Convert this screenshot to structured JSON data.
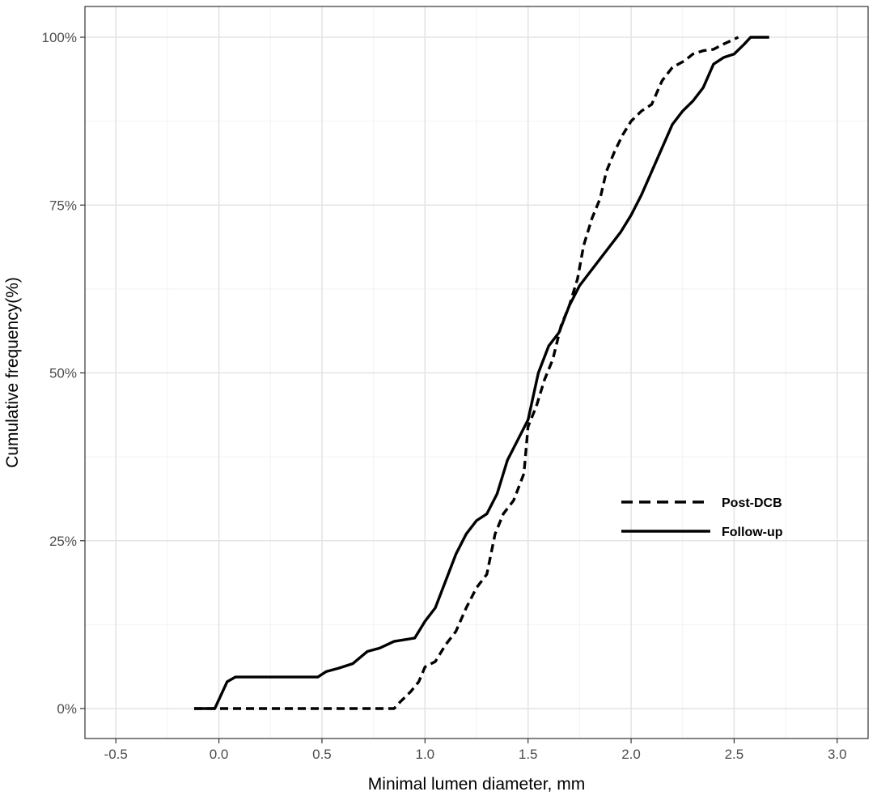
{
  "chart_data": {
    "type": "line",
    "title": "",
    "xlabel": "Minimal lumen diameter, mm",
    "ylabel": "Cumulative frequency(%)",
    "xlim": [
      -0.65,
      3.15
    ],
    "ylim": [
      -0.04,
      1.0
    ],
    "x_ticks": [
      -0.5,
      0.0,
      0.5,
      1.0,
      1.5,
      2.0,
      2.5,
      3.0
    ],
    "x_tick_labels": [
      "-0.5",
      "0.0",
      "0.5",
      "1.0",
      "1.5",
      "2.0",
      "2.5",
      "3.0"
    ],
    "y_ticks": [
      0,
      0.25,
      0.5,
      0.75,
      1.0
    ],
    "y_tick_labels": [
      "0%",
      "25%",
      "50%",
      "75%",
      "100%"
    ],
    "grid": true,
    "legend_position": "right",
    "series": [
      {
        "name": "Post-DCB",
        "style": "dashed",
        "color": "#000000",
        "points": [
          [
            -0.12,
            0.0
          ],
          [
            0.85,
            0.0
          ],
          [
            0.88,
            0.01
          ],
          [
            0.93,
            0.025
          ],
          [
            0.97,
            0.04
          ],
          [
            1.0,
            0.062
          ],
          [
            1.05,
            0.07
          ],
          [
            1.1,
            0.095
          ],
          [
            1.15,
            0.115
          ],
          [
            1.2,
            0.15
          ],
          [
            1.25,
            0.18
          ],
          [
            1.3,
            0.2
          ],
          [
            1.34,
            0.26
          ],
          [
            1.38,
            0.29
          ],
          [
            1.43,
            0.31
          ],
          [
            1.48,
            0.35
          ],
          [
            1.5,
            0.42
          ],
          [
            1.54,
            0.45
          ],
          [
            1.58,
            0.49
          ],
          [
            1.62,
            0.52
          ],
          [
            1.66,
            0.57
          ],
          [
            1.7,
            0.6
          ],
          [
            1.74,
            0.64
          ],
          [
            1.77,
            0.69
          ],
          [
            1.81,
            0.73
          ],
          [
            1.85,
            0.76
          ],
          [
            1.88,
            0.8
          ],
          [
            1.92,
            0.83
          ],
          [
            1.96,
            0.855
          ],
          [
            2.0,
            0.875
          ],
          [
            2.05,
            0.89
          ],
          [
            2.1,
            0.9
          ],
          [
            2.15,
            0.935
          ],
          [
            2.2,
            0.955
          ],
          [
            2.26,
            0.965
          ],
          [
            2.3,
            0.975
          ],
          [
            2.35,
            0.98
          ],
          [
            2.4,
            0.982
          ],
          [
            2.45,
            0.99
          ],
          [
            2.52,
            1.0
          ]
        ]
      },
      {
        "name": "Follow-up",
        "style": "solid",
        "color": "#000000",
        "points": [
          [
            -0.12,
            0.0
          ],
          [
            -0.02,
            0.0
          ],
          [
            0.01,
            0.02
          ],
          [
            0.04,
            0.04
          ],
          [
            0.08,
            0.047
          ],
          [
            0.2,
            0.047
          ],
          [
            0.48,
            0.047
          ],
          [
            0.52,
            0.055
          ],
          [
            0.58,
            0.06
          ],
          [
            0.65,
            0.067
          ],
          [
            0.72,
            0.085
          ],
          [
            0.78,
            0.09
          ],
          [
            0.85,
            0.1
          ],
          [
            0.95,
            0.105
          ],
          [
            1.0,
            0.13
          ],
          [
            1.05,
            0.15
          ],
          [
            1.1,
            0.19
          ],
          [
            1.15,
            0.23
          ],
          [
            1.2,
            0.26
          ],
          [
            1.25,
            0.28
          ],
          [
            1.3,
            0.29
          ],
          [
            1.35,
            0.32
          ],
          [
            1.4,
            0.37
          ],
          [
            1.45,
            0.4
          ],
          [
            1.5,
            0.43
          ],
          [
            1.55,
            0.5
          ],
          [
            1.6,
            0.54
          ],
          [
            1.65,
            0.56
          ],
          [
            1.7,
            0.6
          ],
          [
            1.75,
            0.63
          ],
          [
            1.8,
            0.65
          ],
          [
            1.85,
            0.67
          ],
          [
            1.9,
            0.69
          ],
          [
            1.95,
            0.71
          ],
          [
            2.0,
            0.735
          ],
          [
            2.05,
            0.765
          ],
          [
            2.1,
            0.8
          ],
          [
            2.15,
            0.835
          ],
          [
            2.2,
            0.87
          ],
          [
            2.25,
            0.89
          ],
          [
            2.3,
            0.905
          ],
          [
            2.35,
            0.925
          ],
          [
            2.4,
            0.96
          ],
          [
            2.45,
            0.97
          ],
          [
            2.5,
            0.975
          ],
          [
            2.55,
            0.99
          ],
          [
            2.58,
            1.0
          ],
          [
            2.67,
            1.0
          ]
        ]
      }
    ]
  }
}
